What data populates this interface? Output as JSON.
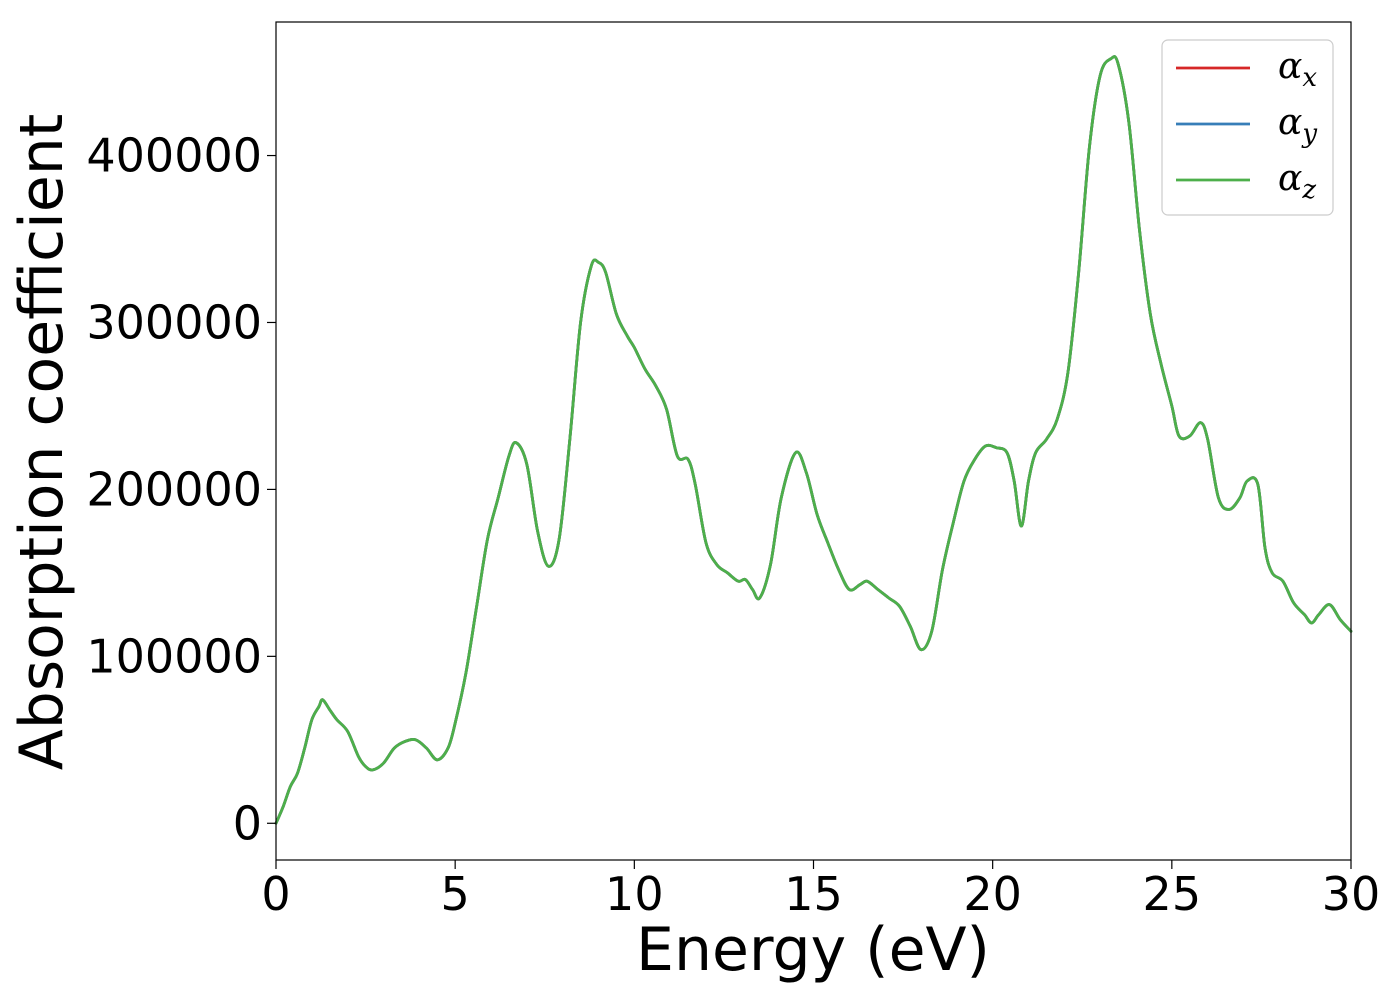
{
  "chart_data": {
    "type": "line",
    "xlabel": "Energy (eV)",
    "ylabel": "Absorption coefficient",
    "xlim": [
      0,
      30
    ],
    "ylim": [
      -22000,
      480000
    ],
    "xticks": [
      0,
      5,
      10,
      15,
      20,
      25,
      30
    ],
    "yticks": [
      0,
      100000,
      200000,
      300000,
      400000
    ],
    "grid": false,
    "legend_position": "top-right",
    "x": [
      0,
      0.2,
      0.4,
      0.6,
      0.8,
      1.0,
      1.2,
      1.3,
      1.5,
      1.7,
      2.0,
      2.3,
      2.5,
      2.7,
      3.0,
      3.3,
      3.6,
      3.9,
      4.2,
      4.5,
      4.8,
      5.0,
      5.3,
      5.6,
      5.9,
      6.2,
      6.5,
      6.7,
      7.0,
      7.3,
      7.6,
      7.9,
      8.2,
      8.5,
      8.8,
      9.0,
      9.2,
      9.5,
      9.8,
      10.0,
      10.3,
      10.6,
      10.9,
      11.2,
      11.5,
      11.7,
      12.0,
      12.3,
      12.6,
      12.9,
      13.1,
      13.3,
      13.5,
      13.8,
      14.1,
      14.5,
      14.8,
      15.1,
      15.4,
      15.7,
      16.0,
      16.3,
      16.5,
      16.8,
      17.1,
      17.4,
      17.7,
      18.0,
      18.3,
      18.6,
      18.9,
      19.2,
      19.5,
      19.8,
      20.1,
      20.4,
      20.6,
      20.8,
      21.0,
      21.2,
      21.5,
      21.8,
      22.1,
      22.4,
      22.7,
      23.0,
      23.3,
      23.5,
      23.8,
      24.1,
      24.4,
      24.7,
      25.0,
      25.2,
      25.5,
      25.8,
      26.0,
      26.3,
      26.6,
      26.9,
      27.1,
      27.4,
      27.6,
      27.8,
      28.1,
      28.4,
      28.7,
      28.9,
      29.1,
      29.4,
      29.7,
      30.0
    ],
    "series": [
      {
        "name": "α_x",
        "color": "#d62728",
        "values": [
          0,
          10000,
          22000,
          30000,
          45000,
          62000,
          70000,
          74000,
          68000,
          62000,
          55000,
          40000,
          34000,
          32000,
          36000,
          45000,
          49000,
          50000,
          45000,
          38000,
          45000,
          60000,
          90000,
          130000,
          170000,
          195000,
          220000,
          228000,
          215000,
          175000,
          154000,
          170000,
          230000,
          300000,
          334000,
          336000,
          330000,
          305000,
          292000,
          285000,
          272000,
          262000,
          248000,
          220000,
          218000,
          203000,
          168000,
          155000,
          150000,
          145000,
          146000,
          140000,
          135000,
          155000,
          195000,
          222000,
          210000,
          185000,
          168000,
          152000,
          140000,
          143000,
          145000,
          140000,
          135000,
          130000,
          118000,
          104000,
          115000,
          152000,
          180000,
          205000,
          218000,
          226000,
          225000,
          222000,
          205000,
          178000,
          205000,
          222000,
          230000,
          242000,
          270000,
          330000,
          405000,
          448000,
          458000,
          455000,
          420000,
          355000,
          305000,
          275000,
          250000,
          232000,
          232000,
          240000,
          230000,
          195000,
          188000,
          195000,
          205000,
          203000,
          165000,
          150000,
          145000,
          132000,
          125000,
          120000,
          125000,
          131000,
          122000,
          115000
        ]
      },
      {
        "name": "α_y",
        "color": "#377eb8",
        "values": [
          0,
          10000,
          22000,
          30000,
          45000,
          62000,
          70000,
          74000,
          68000,
          62000,
          55000,
          40000,
          34000,
          32000,
          36000,
          45000,
          49000,
          50000,
          45000,
          38000,
          45000,
          60000,
          90000,
          130000,
          170000,
          195000,
          220000,
          228000,
          215000,
          175000,
          154000,
          170000,
          230000,
          300000,
          334000,
          336000,
          330000,
          305000,
          292000,
          285000,
          272000,
          262000,
          248000,
          220000,
          218000,
          203000,
          168000,
          155000,
          150000,
          145000,
          146000,
          140000,
          135000,
          155000,
          195000,
          222000,
          210000,
          185000,
          168000,
          152000,
          140000,
          143000,
          145000,
          140000,
          135000,
          130000,
          118000,
          104000,
          115000,
          152000,
          180000,
          205000,
          218000,
          226000,
          225000,
          222000,
          205000,
          178000,
          205000,
          222000,
          230000,
          242000,
          270000,
          330000,
          405000,
          448000,
          458000,
          455000,
          420000,
          355000,
          305000,
          275000,
          250000,
          232000,
          232000,
          240000,
          230000,
          195000,
          188000,
          195000,
          205000,
          203000,
          165000,
          150000,
          145000,
          132000,
          125000,
          120000,
          125000,
          131000,
          122000,
          115000
        ]
      },
      {
        "name": "α_z",
        "color": "#4daf4a",
        "values": [
          0,
          10000,
          22000,
          30000,
          45000,
          62000,
          70000,
          74000,
          68000,
          62000,
          55000,
          40000,
          34000,
          32000,
          36000,
          45000,
          49000,
          50000,
          45000,
          38000,
          45000,
          60000,
          90000,
          130000,
          170000,
          195000,
          220000,
          228000,
          215000,
          175000,
          154000,
          170000,
          230000,
          300000,
          334000,
          336000,
          330000,
          305000,
          292000,
          285000,
          272000,
          262000,
          248000,
          220000,
          218000,
          203000,
          168000,
          155000,
          150000,
          145000,
          146000,
          140000,
          135000,
          155000,
          195000,
          222000,
          210000,
          185000,
          168000,
          152000,
          140000,
          143000,
          145000,
          140000,
          135000,
          130000,
          118000,
          104000,
          115000,
          152000,
          180000,
          205000,
          218000,
          226000,
          225000,
          222000,
          205000,
          178000,
          205000,
          222000,
          230000,
          242000,
          270000,
          330000,
          405000,
          448000,
          458000,
          455000,
          420000,
          355000,
          305000,
          275000,
          250000,
          232000,
          232000,
          240000,
          230000,
          195000,
          188000,
          195000,
          205000,
          203000,
          165000,
          150000,
          145000,
          132000,
          125000,
          120000,
          125000,
          131000,
          122000,
          115000
        ]
      }
    ],
    "legend": [
      {
        "symbol": "α",
        "sub": "x"
      },
      {
        "symbol": "α",
        "sub": "y"
      },
      {
        "symbol": "α",
        "sub": "z"
      }
    ]
  }
}
